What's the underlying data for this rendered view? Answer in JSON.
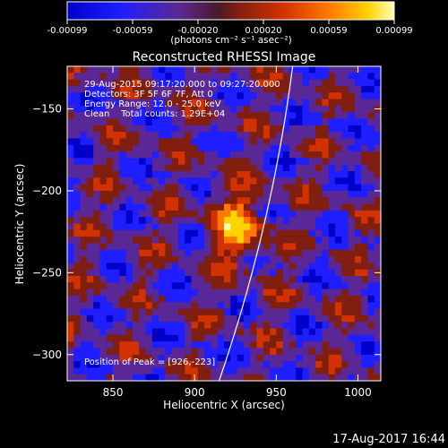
{
  "colorbar": {
    "ticks": [
      "-0.00099",
      "-0.00059",
      "-0.00020",
      "0.00020",
      "0.00059",
      "0.00099"
    ],
    "unit_label": "(photons cm⁻² s⁻¹ asec⁻²)"
  },
  "chart_data": {
    "type": "heatmap",
    "title": "Reconstructed RHESSI Image",
    "xlabel": "Heliocentric X (arcsec)",
    "ylabel": "Heliocentric Y (arcsec)",
    "xlim": [
      822,
      1014
    ],
    "ylim": [
      -316,
      -124
    ],
    "x_ticks": [
      850,
      900,
      950,
      1000
    ],
    "y_ticks": [
      -150,
      -200,
      -250,
      -300
    ],
    "color_range": [
      -0.00099,
      0.00099
    ],
    "colormap": [
      "#0000c8",
      "#1e1eff",
      "#5a2896",
      "#801e10",
      "#d23200",
      "#ff7800",
      "#ffd200",
      "#ffffb4"
    ],
    "annotations": [
      "29-Aug-2015 09:17:20.000 to 09:27:20.000",
      "Detectors: 3F 5F 6F 7F, Att 0",
      "Energy Range: 12.0 - 25.0 keV",
      "Clean    Total counts: 1.29E+04"
    ],
    "peak_label": "Position of Peak = [926,-223]",
    "peak_position": [
      926,
      -223
    ],
    "limb_color": "#ffffff"
  },
  "footer": {
    "timestamp": "17-Aug-2017 16:44"
  }
}
